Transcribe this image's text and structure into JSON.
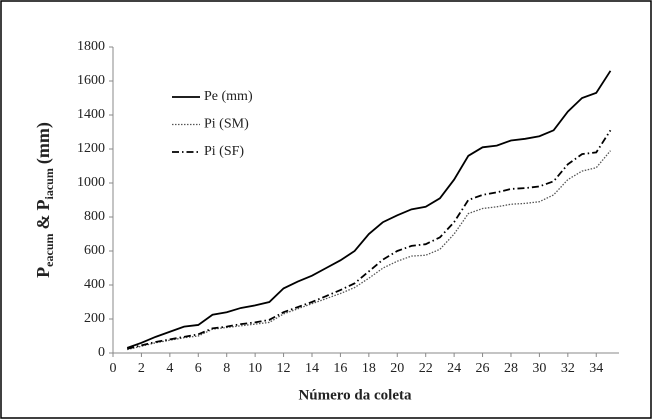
{
  "chart_data": {
    "type": "line",
    "x_label": "Número da coleta",
    "y_label": [
      "P",
      "eacum",
      "&",
      "P",
      "iacum",
      "(mm)"
    ],
    "x": [
      1,
      2,
      3,
      4,
      5,
      6,
      7,
      8,
      9,
      10,
      11,
      12,
      13,
      14,
      15,
      16,
      17,
      18,
      19,
      20,
      21,
      22,
      23,
      24,
      25,
      26,
      27,
      28,
      29,
      30,
      31,
      32,
      33,
      34,
      35
    ],
    "series": [
      {
        "name": "Pe (mm)",
        "color": "#000000",
        "style": "solid",
        "values": [
          30,
          60,
          95,
          125,
          155,
          165,
          225,
          240,
          265,
          280,
          300,
          380,
          420,
          455,
          500,
          545,
          600,
          700,
          770,
          810,
          845,
          860,
          910,
          1020,
          1160,
          1210,
          1220,
          1250,
          1260,
          1275,
          1310,
          1420,
          1500,
          1530,
          1660
        ]
      },
      {
        "name": "Pi (SM)",
        "color": "#555555",
        "style": "dotted",
        "values": [
          20,
          40,
          60,
          75,
          90,
          100,
          140,
          150,
          160,
          170,
          180,
          230,
          260,
          290,
          320,
          350,
          385,
          440,
          500,
          540,
          570,
          575,
          610,
          700,
          820,
          850,
          860,
          875,
          880,
          890,
          930,
          1020,
          1070,
          1090,
          1190
        ]
      },
      {
        "name": "Pi (SF)",
        "color": "#000000",
        "style": "dashdot",
        "values": [
          25,
          45,
          65,
          80,
          95,
          110,
          145,
          155,
          170,
          180,
          195,
          240,
          270,
          300,
          335,
          370,
          410,
          480,
          550,
          600,
          630,
          640,
          680,
          770,
          900,
          930,
          945,
          965,
          970,
          980,
          1010,
          1110,
          1170,
          1180,
          1310
        ]
      }
    ],
    "xlim": [
      0,
      35.6
    ],
    "xticks": [
      0,
      2,
      4,
      6,
      8,
      10,
      12,
      14,
      16,
      18,
      20,
      22,
      24,
      26,
      28,
      30,
      32,
      34
    ],
    "ylim": [
      0,
      1800
    ],
    "yticks": [
      0,
      200,
      400,
      600,
      800,
      1000,
      1200,
      1400,
      1600,
      1800
    ]
  }
}
